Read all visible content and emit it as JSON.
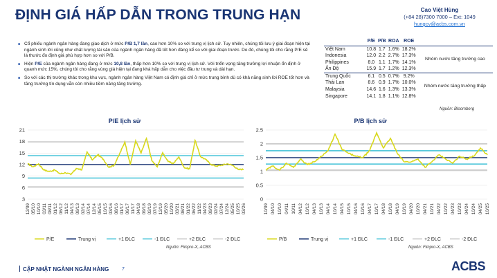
{
  "page": {
    "title": "ĐỊNH GIÁ HẤP DẪN TRONG TRUNG HẠN",
    "author": {
      "name": "Cao Việt Hùng",
      "phone": "(+84 28)7300 7000 – Ext: 1049",
      "email": "hungcv@acbs.com.vn"
    },
    "footer": "CẬP NHẬT NGÀNH NGÂN HÀNG",
    "page_number": "7",
    "logo": "ACBS",
    "colors": {
      "navy": "#1a3573",
      "accent": "#1f6fd1",
      "series": "#d8d81c",
      "plus_sd": "#26b9d1",
      "minus_sd": "#26b9d1",
      "plus2_sd": "#bdbdbd",
      "median": "#1a3573"
    }
  },
  "bullets": [
    {
      "pre": "Cổ phiếu ngành ngân hàng đang giao dịch ở mức ",
      "bold": "P/B 1,7 lần",
      "post": ", cao hơn 10% so với trung vị lịch sử. Tuy nhiên, chúng tôi lưu ý giai đoạn hiện tại ngành sinh lời cũng như chất lượng tài sản của ngành ngân hàng đã tốt hơn đáng kể so với giai đoạn trước. Do đó, chúng tôi cho rằng P/E sẽ là thước đo định giá phù hợp hơn so với P/B.",
      "bold2": "",
      "post2": ""
    },
    {
      "pre": "Hiện ",
      "bold": "P/E",
      "post": " của ngành ngân hàng đang ở mức ",
      "bold2": "10,8 lần",
      "post2": ", thấp hơn 10% so với trung vị lịch sử. Với triển vọng tăng trưởng lợi nhuận ổn định ở quanh mức 15%, chúng tôi cho rằng vùng giá hiện tại đang khá hấp dẫn cho việc đầu tư trung và dài hạn."
    },
    {
      "pre": "So với các thị trường khác trong khu vực, ngành ngân hàng Việt Nam có định giá chỉ ở mức trung bình dù có khả năng sinh lời ROE tốt hơn và tăng trưởng tín dụng vẫn còn nhiều tiềm năng tăng trưởng.",
      "bold": "",
      "post": "",
      "bold2": "",
      "post2": ""
    }
  ],
  "valuation_table": {
    "headers": [
      "",
      "P/E",
      "P/B",
      "ROA",
      "ROE",
      ""
    ],
    "groups": [
      {
        "label": "Nhóm nước tăng trưởng cao",
        "rows": [
          [
            "Việt Nam",
            "10.8",
            "1.7",
            "1.6%",
            "18.2%"
          ],
          [
            "Indonesia",
            "12.0",
            "2.2",
            "2.7%",
            "17.3%"
          ],
          [
            "Philippines",
            "8.0",
            "1.1",
            "1.7%",
            "14.1%"
          ],
          [
            "Ấn Độ",
            "15.9",
            "1.7",
            "1.2%",
            "12.3%"
          ]
        ]
      },
      {
        "label": "Nhóm nước tăng trưởng thấp",
        "rows": [
          [
            "Trung Quốc",
            "6.1",
            "0.5",
            "0.7%",
            "9.2%"
          ],
          [
            "Thái Lan",
            "8.6",
            "0.9",
            "1.7%",
            "10.0%"
          ],
          [
            "Malaysia",
            "14.6",
            "1.6",
            "1.3%",
            "13.3%"
          ],
          [
            "Singapore",
            "14.1",
            "1.8",
            "1.1%",
            "12.8%"
          ]
        ]
      }
    ],
    "source": "Nguồn: Bloomberg"
  },
  "chart_data": [
    {
      "type": "line",
      "title": "P/E lịch sử",
      "ylim": [
        3,
        21
      ],
      "yticks": [
        "3",
        "6",
        "9",
        "12",
        "15",
        "18",
        "21"
      ],
      "x_ticks": [
        "12/09",
        "05/10",
        "10/10",
        "03/11",
        "08/11",
        "01/12",
        "06/12",
        "11/12",
        "04/13",
        "09/13",
        "02/14",
        "07/14",
        "12/14",
        "05/15",
        "10/15",
        "03/16",
        "08/16",
        "01/17",
        "06/17",
        "11/17",
        "04/18",
        "09/18",
        "02/19",
        "07/19",
        "12/19",
        "05/20",
        "10/20",
        "03/21",
        "08/21",
        "01/22",
        "06/22",
        "11/22",
        "04/23",
        "09/23",
        "02/24",
        "07/24",
        "12/24",
        "05/25",
        "10/25",
        "03/26"
      ],
      "reference_lines": {
        "median": 12.0,
        "plus1_sd": 14.3,
        "minus1_sd": 8.5,
        "plus2_sd": 17.9,
        "minus2_sd": 6.2
      },
      "series": [
        {
          "name": "P/E",
          "points": [
            [
              0,
              12.2
            ],
            [
              1,
              11.4
            ],
            [
              2,
              12.2
            ],
            [
              3,
              10.6
            ],
            [
              4,
              10.2
            ],
            [
              5,
              10.6
            ],
            [
              6,
              9.6
            ],
            [
              7,
              9.9
            ],
            [
              8,
              9.4
            ],
            [
              9,
              11.0
            ],
            [
              10,
              10.6
            ],
            [
              11,
              15.3
            ],
            [
              12,
              13.2
            ],
            [
              13,
              14.6
            ],
            [
              14,
              13.4
            ],
            [
              15,
              11.3
            ],
            [
              16,
              11.8
            ],
            [
              17,
              14.7
            ],
            [
              18,
              17.9
            ],
            [
              19,
              12.0
            ],
            [
              20,
              18.2
            ],
            [
              21,
              15.0
            ],
            [
              22,
              18.8
            ],
            [
              23,
              13.0
            ],
            [
              24,
              11.4
            ],
            [
              25,
              15.1
            ],
            [
              26,
              12.8
            ],
            [
              27,
              12.3
            ],
            [
              28,
              14.0
            ],
            [
              29,
              11.2
            ],
            [
              30,
              10.9
            ],
            [
              31,
              18.3
            ],
            [
              32,
              14.1
            ],
            [
              33,
              13.3
            ],
            [
              34,
              12.0
            ],
            [
              35,
              11.6
            ],
            [
              36,
              11.9
            ],
            [
              37,
              12.2
            ],
            [
              38,
              11.8
            ],
            [
              39,
              10.7
            ],
            [
              40,
              10.8
            ]
          ]
        }
      ],
      "legend": [
        "P/E",
        "Trung vị",
        "+1 ĐLC",
        "-1 ĐLC",
        "+2 ĐLC",
        "-2 ĐLC"
      ],
      "source": "Nguồn: Fiinpro-X, ACBS"
    },
    {
      "type": "line",
      "title": "P/B lịch sử",
      "ylim": [
        0,
        2.5
      ],
      "yticks": [
        "0",
        "0.5",
        "1",
        "1.5",
        "2",
        "2.5"
      ],
      "x_ticks": [
        "10/09",
        "04/10",
        "10/10",
        "04/11",
        "10/11",
        "04/12",
        "10/12",
        "04/13",
        "10/13",
        "04/14",
        "10/14",
        "04/15",
        "10/15",
        "04/16",
        "10/16",
        "04/17",
        "10/17",
        "04/18",
        "10/18",
        "04/19",
        "10/19",
        "04/20",
        "10/20",
        "04/21",
        "10/21",
        "04/22",
        "10/22",
        "04/23",
        "10/23",
        "04/24",
        "10/24",
        "04/25",
        "10/25"
      ],
      "reference_lines": {
        "median": 1.5,
        "plus1_sd": 1.75,
        "minus1_sd": 1.27,
        "plus2_sd": 2.0,
        "minus2_sd": 1.05
      },
      "series": [
        {
          "name": "P/B",
          "points": [
            [
              0,
              1.05
            ],
            [
              1,
              1.2
            ],
            [
              2,
              1.05
            ],
            [
              3,
              1.3
            ],
            [
              4,
              1.15
            ],
            [
              5,
              1.45
            ],
            [
              6,
              1.25
            ],
            [
              7,
              1.35
            ],
            [
              8,
              1.55
            ],
            [
              9,
              1.75
            ],
            [
              10,
              2.35
            ],
            [
              11,
              1.8
            ],
            [
              12,
              1.65
            ],
            [
              13,
              1.55
            ],
            [
              14,
              1.5
            ],
            [
              15,
              1.75
            ],
            [
              16,
              2.4
            ],
            [
              17,
              1.85
            ],
            [
              18,
              2.2
            ],
            [
              19,
              1.65
            ],
            [
              20,
              1.35
            ],
            [
              21,
              1.35
            ],
            [
              22,
              1.45
            ],
            [
              23,
              1.15
            ],
            [
              24,
              1.35
            ],
            [
              25,
              1.6
            ],
            [
              26,
              1.45
            ],
            [
              27,
              1.3
            ],
            [
              28,
              1.55
            ],
            [
              29,
              1.45
            ],
            [
              30,
              1.55
            ],
            [
              31,
              1.85
            ],
            [
              32,
              1.6
            ]
          ]
        }
      ],
      "legend": [
        "P/B",
        "Trung vị",
        "+1 ĐLC",
        "-1 ĐLC",
        "+2 ĐLC",
        "-2 ĐLC"
      ],
      "source": "Nguồn: Fiinpro-X, ACBS"
    }
  ]
}
